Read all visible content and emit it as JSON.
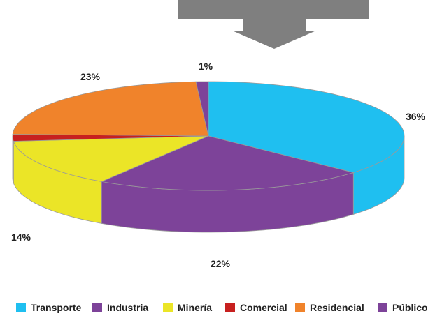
{
  "chart_data": {
    "type": "pie",
    "style": "3d",
    "categories": [
      "Transporte",
      "Industria",
      "Minería",
      "Comercial",
      "Residencial",
      "Público"
    ],
    "values": [
      36,
      22,
      14,
      2,
      23,
      1
    ],
    "labels": [
      "36%",
      "22%",
      "14%",
      "",
      "23%",
      "1%"
    ],
    "colors": [
      "#1fbff0",
      "#7d4399",
      "#ebe527",
      "#c7201f",
      "#f0832b",
      "#7d4399"
    ],
    "legend_position": "bottom"
  },
  "decor": {
    "arrow_color": "#7f7f7f",
    "arrow_direction": "down"
  }
}
